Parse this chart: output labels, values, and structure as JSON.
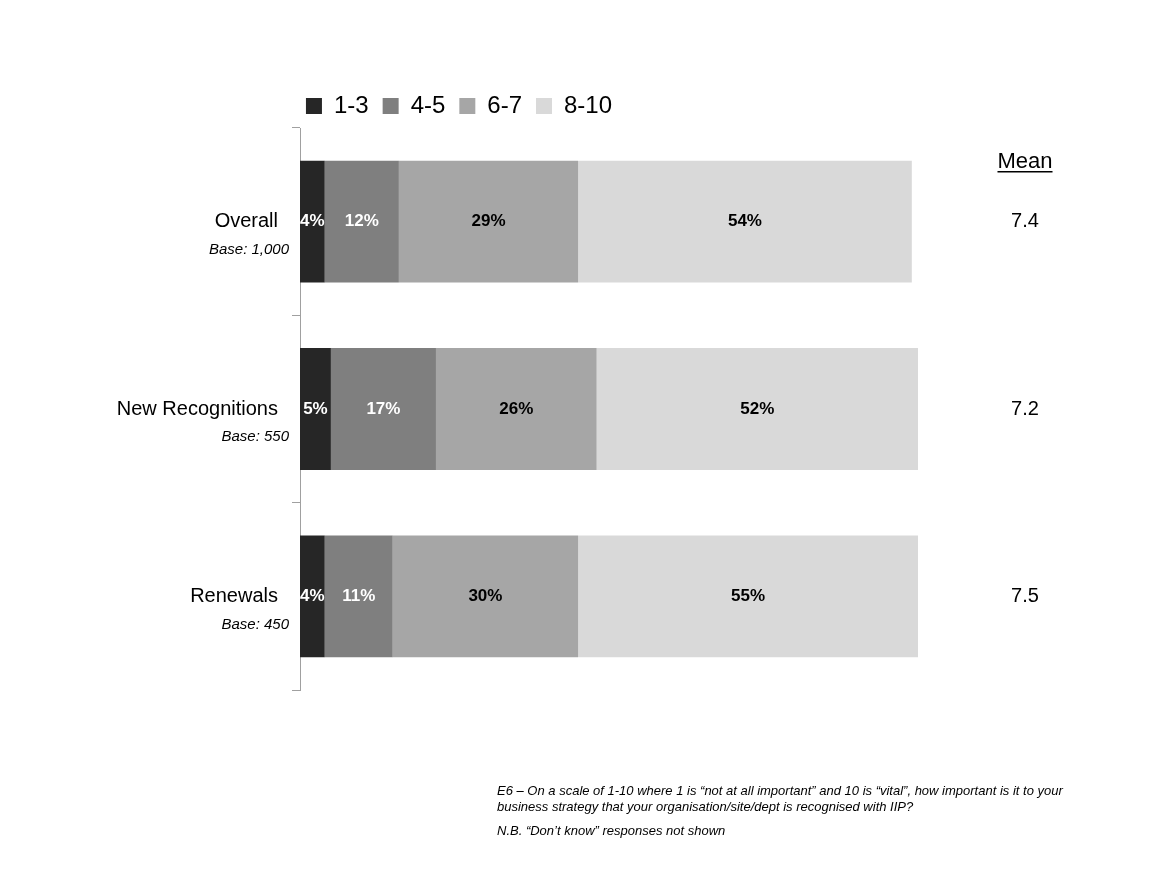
{
  "chart_data": {
    "type": "bar",
    "orientation": "horizontal",
    "stacked": true,
    "categories": [
      "Overall",
      "New Recognitions",
      "Renewals"
    ],
    "series": [
      {
        "name": "1-3",
        "color": "#262626",
        "values": [
          4,
          5,
          4
        ],
        "value_labels": [
          "4%",
          "5%",
          "4%"
        ]
      },
      {
        "name": "4-5",
        "color": "#7f7f7f",
        "values": [
          12,
          17,
          11
        ],
        "value_labels": [
          "12%",
          "17%",
          "11%"
        ]
      },
      {
        "name": "6-7",
        "color": "#a6a6a6",
        "values": [
          29,
          26,
          30
        ],
        "value_labels": [
          "29%",
          "26%",
          "30%"
        ]
      },
      {
        "name": "8-10",
        "color": "#d9d9d9",
        "values": [
          54,
          52,
          55
        ],
        "value_labels": [
          "54%",
          "52%",
          "55%"
        ]
      }
    ],
    "tick_labels": "y",
    "legend": "top",
    "annotations": [
      "Base: 1,000",
      "7.4",
      "Base: 550",
      "7.2",
      "Base: 450",
      "7.5",
      "Mean",
      "E6 – On a scale of 1-10 where 1 is “not at all important” and 10 is “vital”, how important is it to your business strategy that your organisation/site/dept is recognised with IIP?",
      "N.B. “Don’t know” responses not shown"
    ]
  }
}
